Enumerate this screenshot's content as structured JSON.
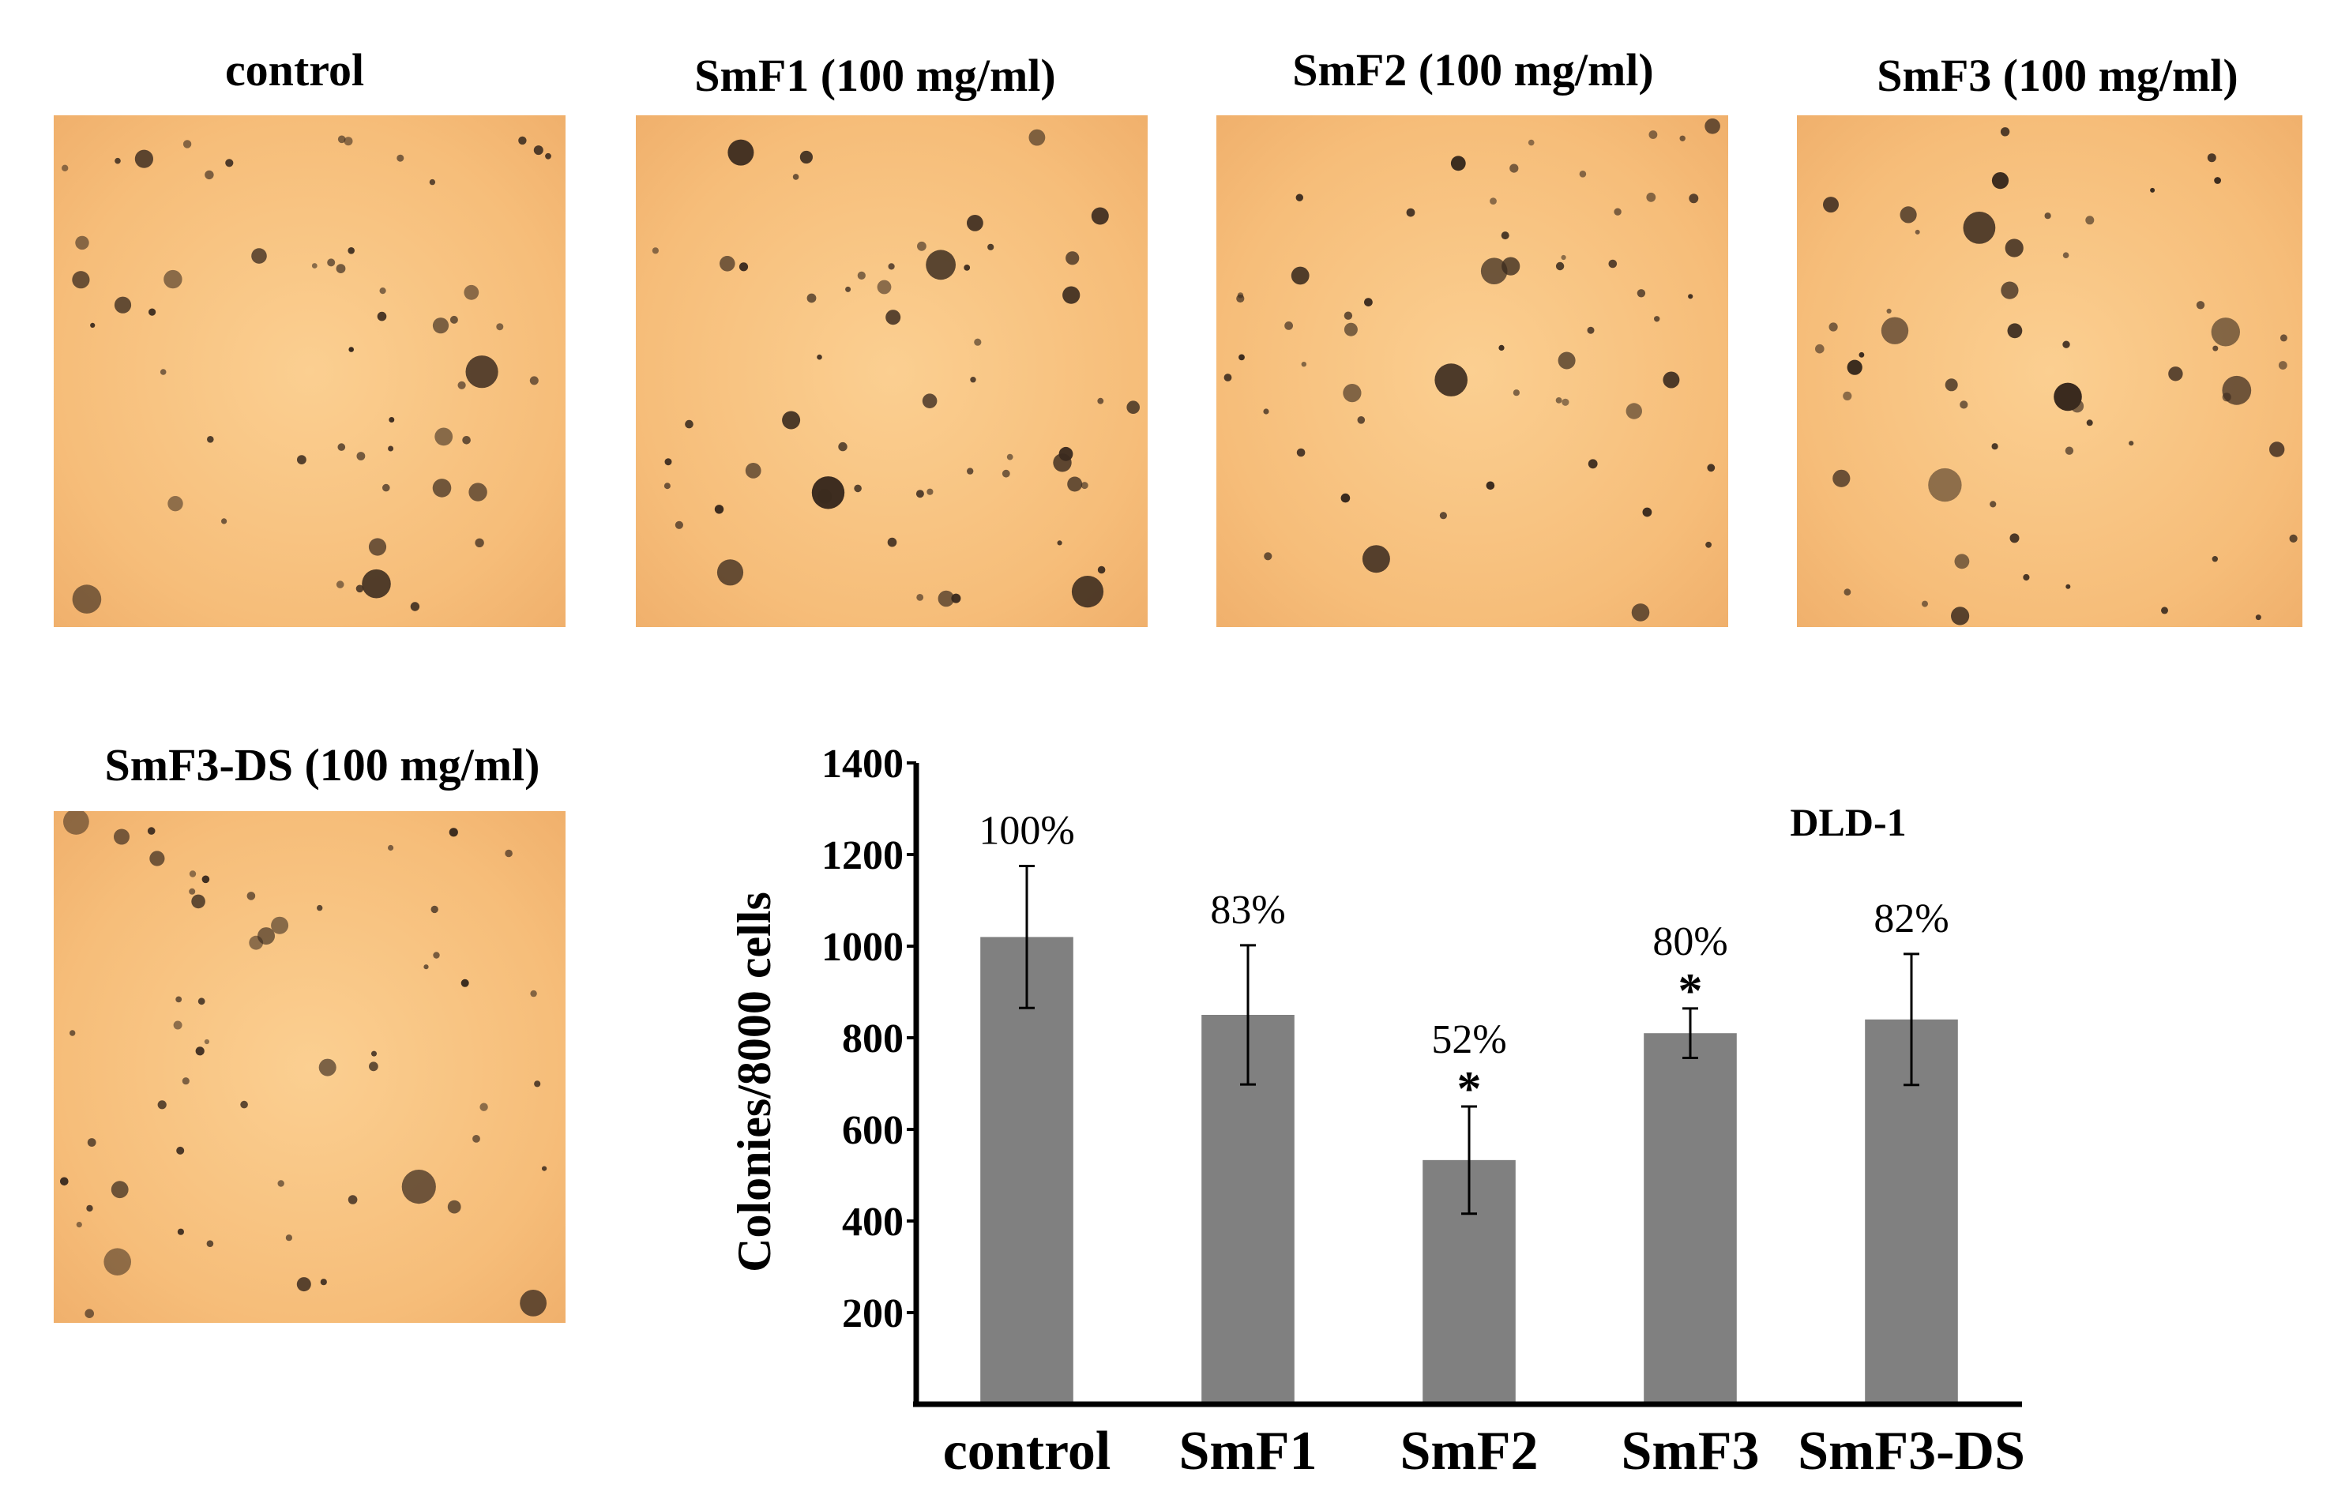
{
  "panels": [
    {
      "title": "control"
    },
    {
      "title": "SmF1 (100 mg/ml)"
    },
    {
      "title": "SmF2 (100 mg/ml)"
    },
    {
      "title": "SmF3 (100 mg/ml)"
    },
    {
      "title": "SmF3-DS (100 mg/ml)"
    }
  ],
  "colors": {
    "bar": "#808080",
    "axis": "#000000",
    "colony": "#3a2a1e",
    "background_warm": "#f6bd79"
  },
  "chart_data": {
    "type": "bar",
    "title": "DLD-1",
    "xlabel": "",
    "ylabel": "Colonies/8000 cells",
    "categories": [
      "control",
      "SmF1",
      "SmF2",
      "SmF3",
      "SmF3-DS"
    ],
    "values": [
      1020,
      850,
      533,
      810,
      840
    ],
    "errors": [
      155,
      152,
      117,
      54,
      143
    ],
    "percent_labels": [
      "100%",
      "83%",
      "52%",
      "80%",
      "82%"
    ],
    "significance": [
      "",
      "",
      "*",
      "*",
      ""
    ],
    "ylim": [
      0,
      1400
    ],
    "yticks": [
      200,
      400,
      600,
      800,
      1000,
      1200,
      1400
    ],
    "grid": false
  }
}
